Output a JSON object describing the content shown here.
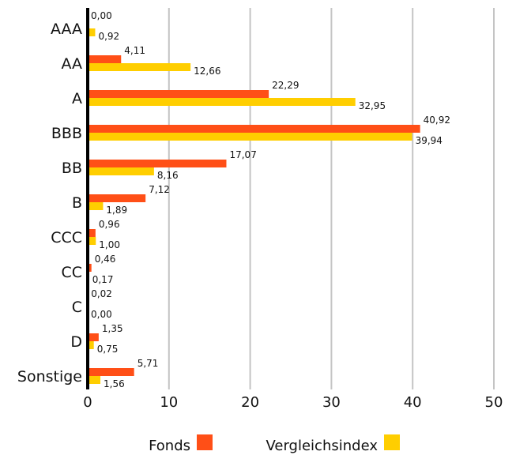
{
  "chart_data": {
    "type": "bar",
    "orientation": "horizontal",
    "categories": [
      "AAA",
      "AA",
      "A",
      "BBB",
      "BB",
      "B",
      "CCC",
      "CC",
      "C",
      "D",
      "Sonstige"
    ],
    "series": [
      {
        "name": "Fonds",
        "color": "#ff4f17",
        "values": [
          0.0,
          4.11,
          22.29,
          40.92,
          17.07,
          7.12,
          0.96,
          0.46,
          0.02,
          1.35,
          5.71
        ],
        "labels": [
          "0,00",
          "4,11",
          "22,29",
          "40,92",
          "17,07",
          "7,12",
          "0,96",
          "0,46",
          "0,02",
          "1,35",
          "5,71"
        ]
      },
      {
        "name": "Vergleichsindex",
        "color": "#ffce00",
        "values": [
          0.92,
          12.66,
          32.95,
          39.94,
          8.16,
          1.89,
          1.0,
          0.17,
          0.0,
          0.75,
          1.56
        ],
        "labels": [
          "0,92",
          "12,66",
          "32,95",
          "39,94",
          "8,16",
          "1,89",
          "1,00",
          "0,17",
          "0,00",
          "0,75",
          "1,56"
        ]
      }
    ],
    "xlim": [
      0,
      50
    ],
    "xticks": [
      "0",
      "10",
      "20",
      "30",
      "40",
      "50"
    ],
    "grid": true,
    "legend_position": "bottom"
  }
}
